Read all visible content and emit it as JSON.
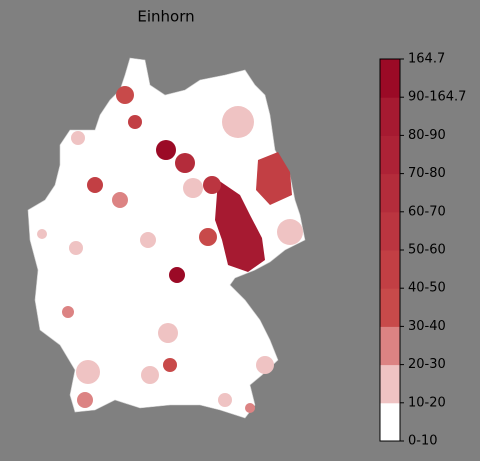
{
  "title": "Einhorn",
  "colorbar": {
    "labels": [
      "0-10",
      "10-20",
      "20-30",
      "30-40",
      "40-50",
      "50-60",
      "60-70",
      "70-80",
      "80-90",
      "90-164.7",
      "164.7"
    ],
    "colors": [
      "#ffffff",
      "#efc3c3",
      "#dc8383",
      "#c84a4a",
      "#c23f44",
      "#bb3540",
      "#b42c3b",
      "#ad2236",
      "#a61a31",
      "#9b0a26"
    ]
  }
}
